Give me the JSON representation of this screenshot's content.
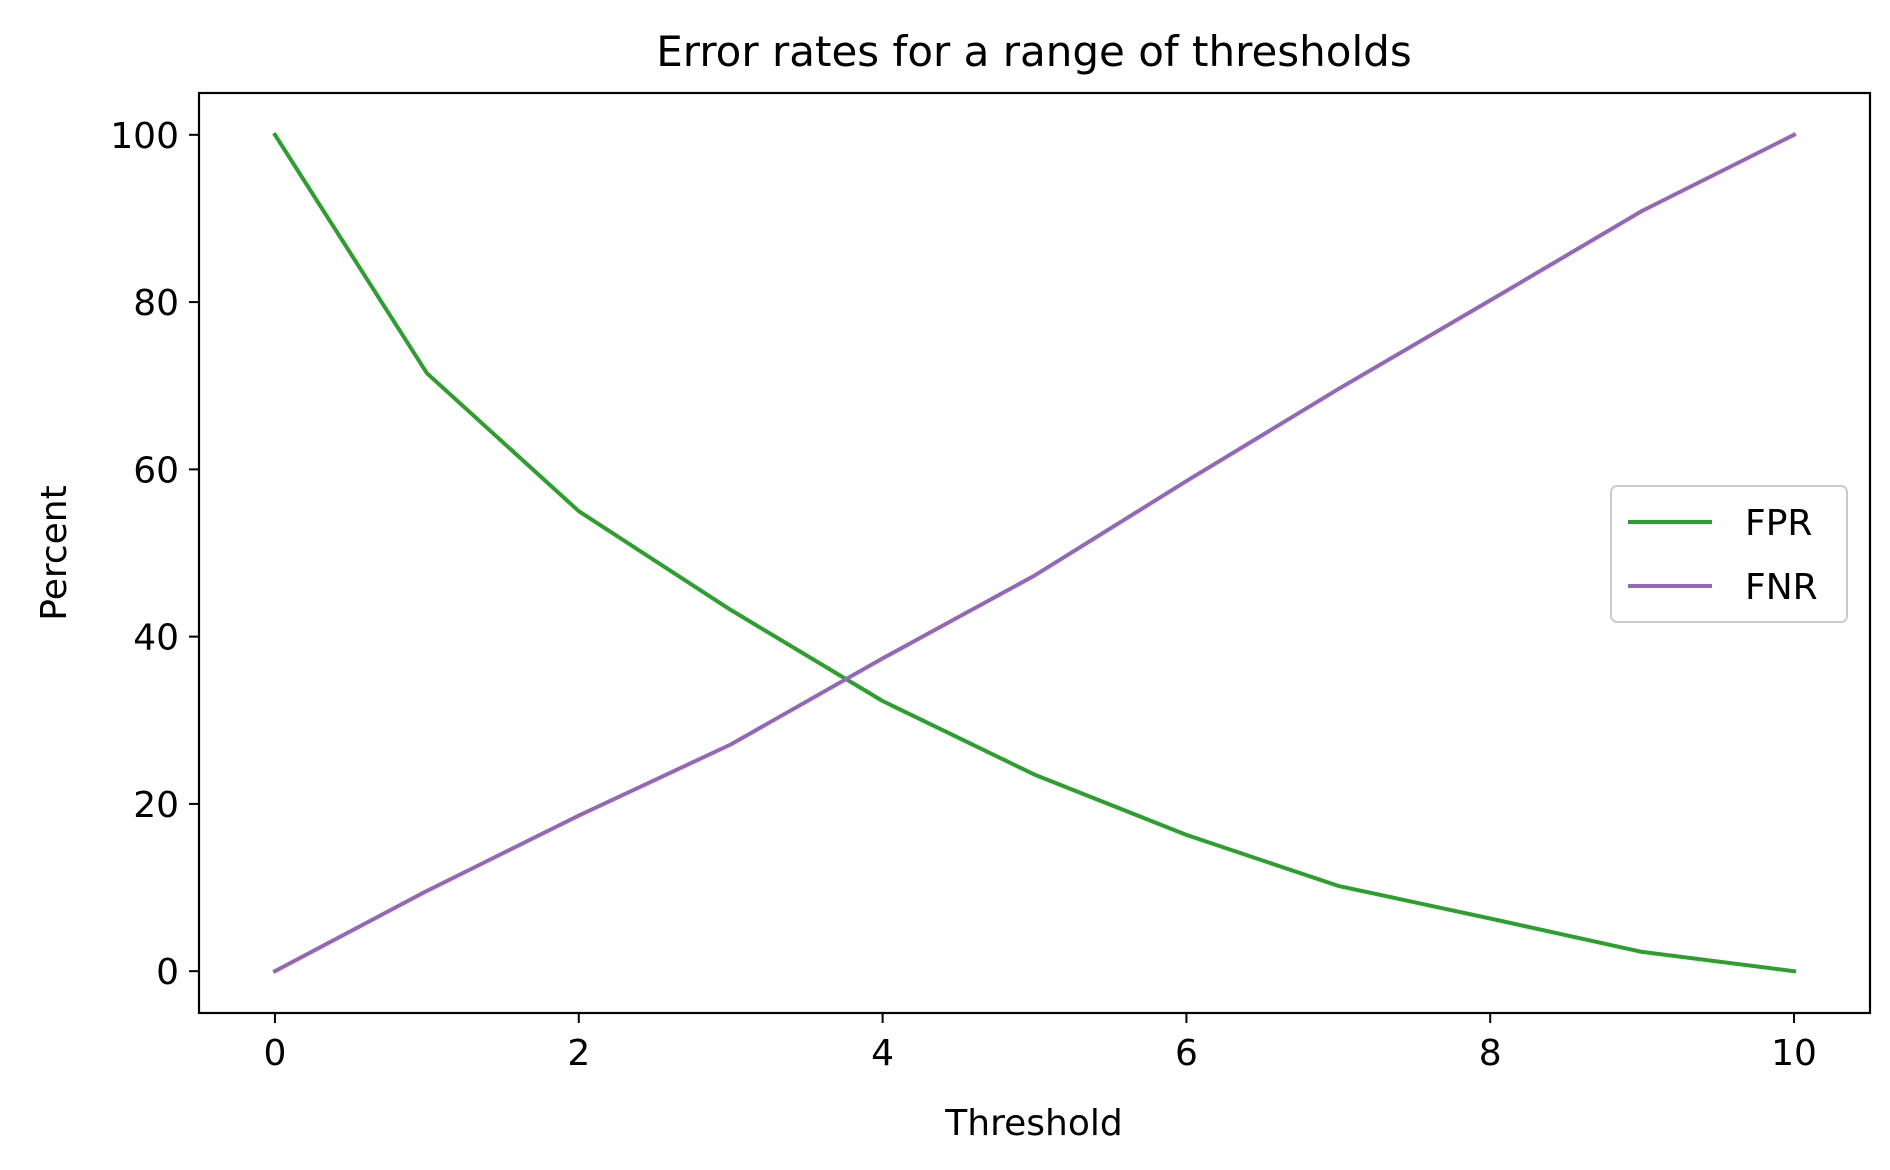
{
  "chart_data": {
    "type": "line",
    "title": "Error rates for a range of thresholds",
    "xlabel": "Threshold",
    "ylabel": "Percent",
    "xlim": [
      -0.5,
      10.5
    ],
    "ylim": [
      -5,
      105
    ],
    "xticks": [
      0,
      2,
      4,
      6,
      8,
      10
    ],
    "yticks": [
      0,
      20,
      40,
      60,
      80,
      100
    ],
    "grid": false,
    "legend_position": "center-right",
    "x": [
      0,
      1,
      2,
      3,
      4,
      5,
      6,
      7,
      8,
      9,
      10
    ],
    "series": [
      {
        "name": "FPR",
        "color": "#2ca02c",
        "values": [
          100,
          71.5,
          55,
          43.2,
          32.3,
          23.5,
          16.3,
          10.2,
          6.3,
          2.3,
          0
        ]
      },
      {
        "name": "FNR",
        "color": "#9467bd",
        "values": [
          0,
          9.6,
          18.6,
          27.1,
          37.4,
          47.3,
          58.6,
          69.6,
          80.2,
          90.9,
          100
        ]
      }
    ]
  }
}
